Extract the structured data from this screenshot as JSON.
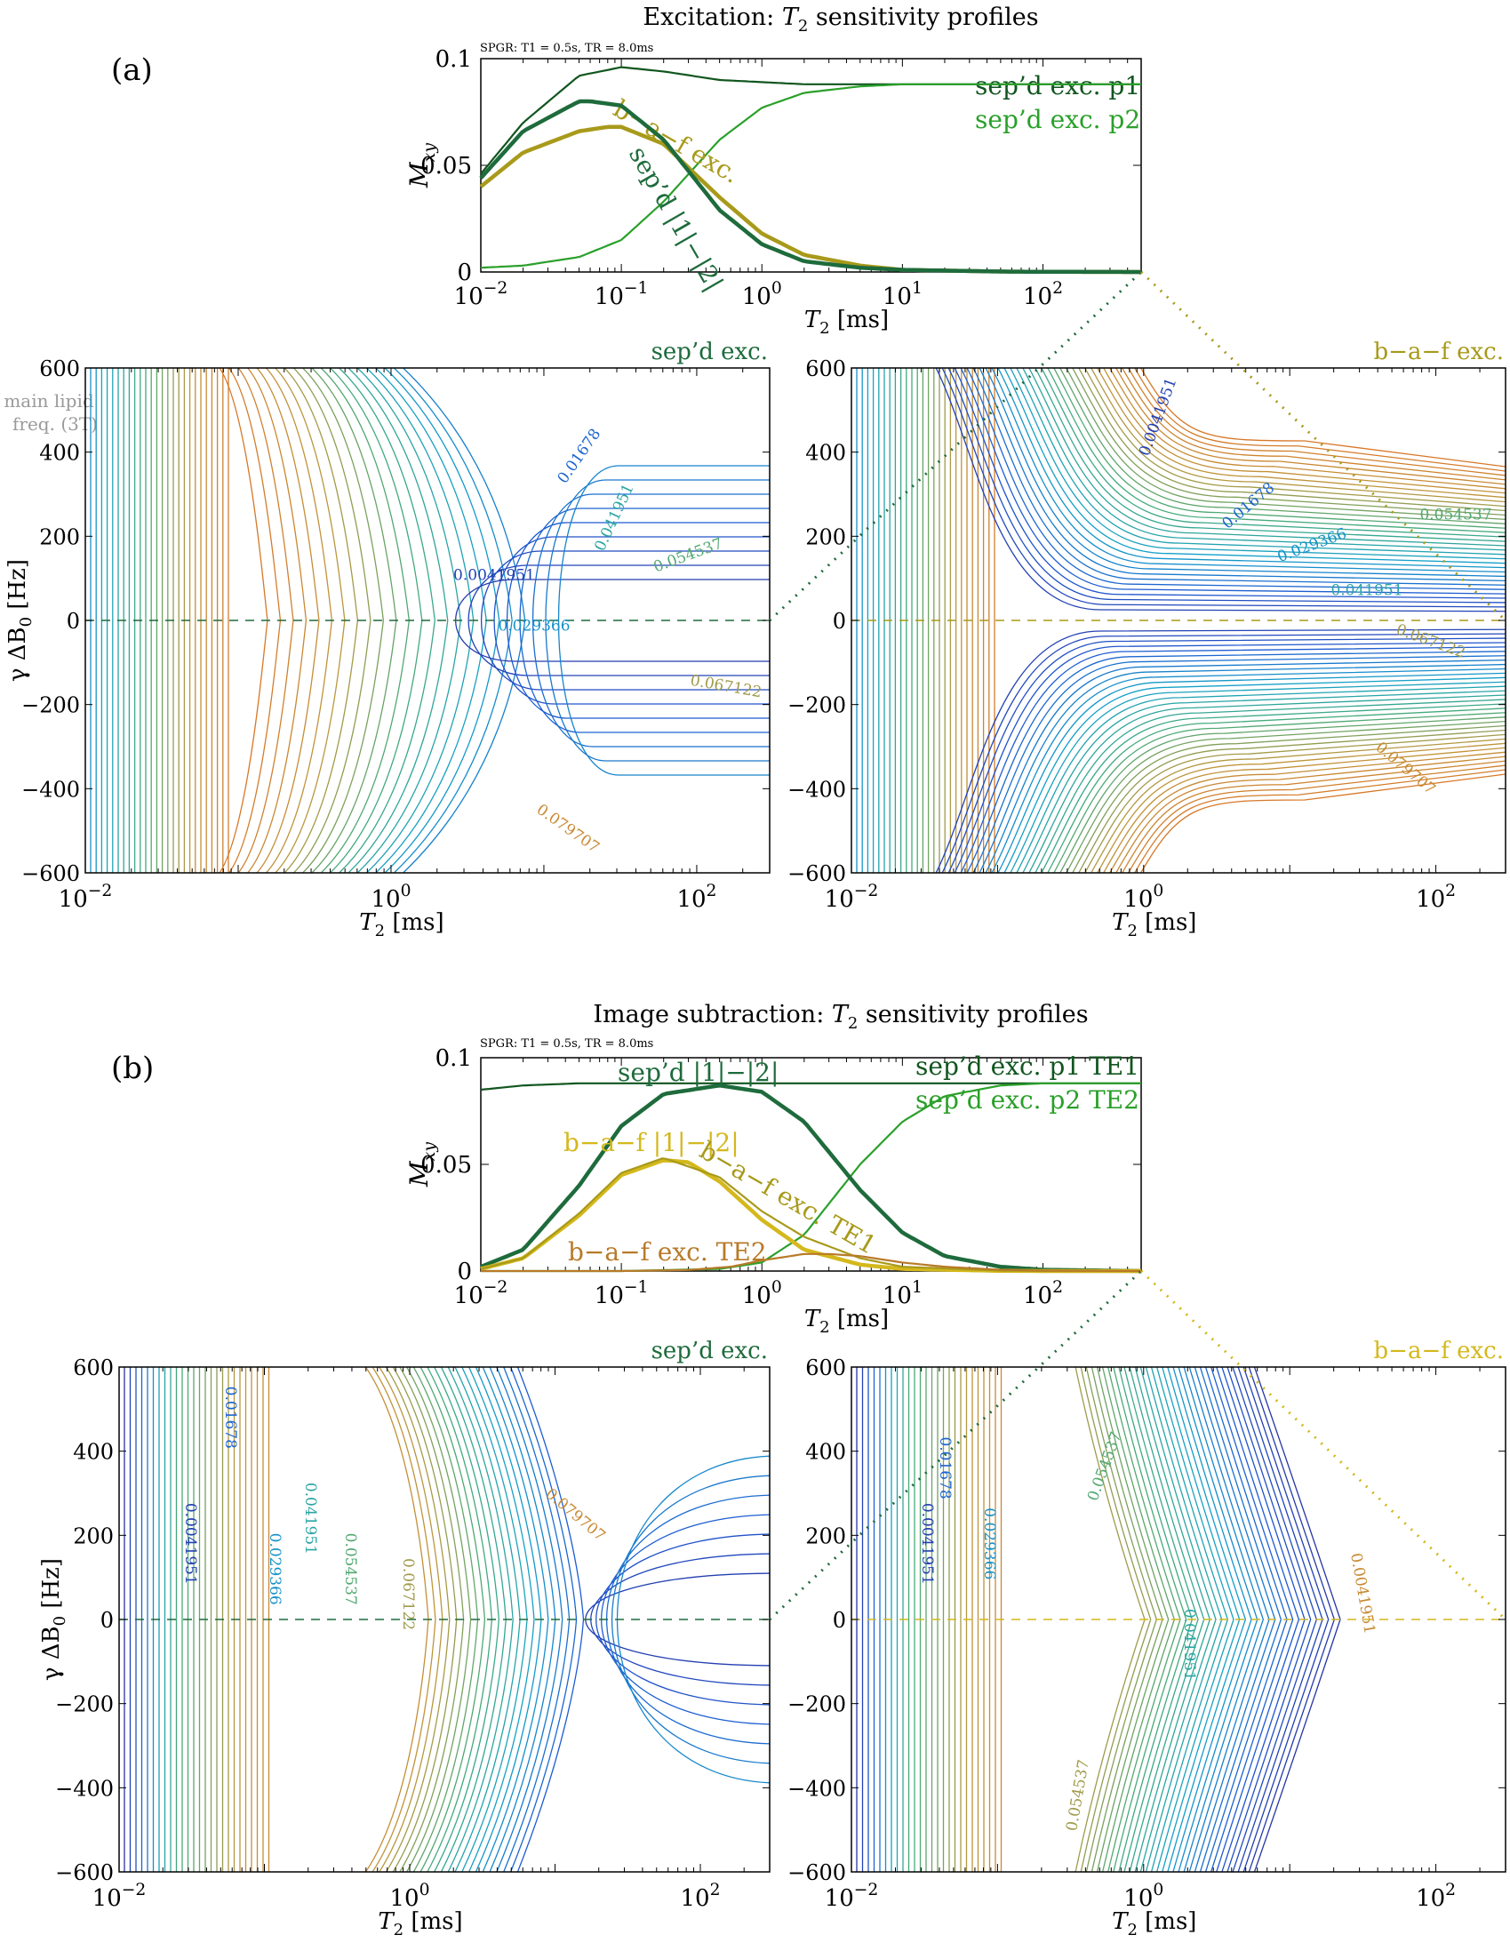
{
  "figure": {
    "panel_a": {
      "label": "(a)",
      "title_prefix": "Excitation: ",
      "title_t": "T",
      "title_sub": "2",
      "title_suffix": " sensitivity profiles"
    },
    "panel_b": {
      "label": "(b)",
      "title_prefix": "Image subtraction: ",
      "title_t": "T",
      "title_sub": "2",
      "title_suffix": " sensitivity profiles"
    },
    "spgr_note": "SPGR: T1 = 0.5s, TR = 8.0ms",
    "lipid_label_line1": "main lipid",
    "lipid_label_line2": "freq. (3T)",
    "colors": {
      "sepd": "#1e6b3c",
      "sepd_p1": "#11561f",
      "sepd_p2": "#2aa02a",
      "baf_a": "#a89a1a",
      "baf_b": "#d4b81c",
      "baf_te2": "#b87a28",
      "baf_title_a": "#a89a1a",
      "baf_title_b": "#d4b81c"
    }
  },
  "chart_data": [
    {
      "id": "a-top",
      "type": "line",
      "xscale": "log",
      "xlim": [
        0.01,
        500
      ],
      "ylim": [
        0,
        0.1
      ],
      "xlabel": "T2 [ms]",
      "ylabel": "Mxy",
      "xticks": [
        "10^-2",
        "10^-1",
        "10^0",
        "10^1",
        "10^2"
      ],
      "yticks": [
        "0",
        "0.05",
        "0.1"
      ],
      "series": [
        {
          "name": "sep'd exc. p1",
          "label": "sep’d exc. p1",
          "x": [
            0.01,
            0.02,
            0.05,
            0.1,
            0.2,
            0.5,
            1,
            2,
            5,
            10,
            50,
            100,
            500
          ],
          "y": [
            0.046,
            0.07,
            0.092,
            0.096,
            0.094,
            0.09,
            0.089,
            0.088,
            0.088,
            0.088,
            0.088,
            0.088,
            0.088
          ]
        },
        {
          "name": "sep'd exc. p2",
          "label": "sep’d exc. p2",
          "x": [
            0.01,
            0.02,
            0.05,
            0.1,
            0.2,
            0.5,
            1,
            2,
            5,
            10,
            50,
            100,
            500
          ],
          "y": [
            0.002,
            0.003,
            0.007,
            0.015,
            0.033,
            0.062,
            0.077,
            0.084,
            0.087,
            0.088,
            0.088,
            0.088,
            0.088
          ]
        },
        {
          "name": "b-a-f exc.",
          "label": "b−a−f exc.",
          "x": [
            0.01,
            0.02,
            0.05,
            0.08,
            0.1,
            0.2,
            0.5,
            1,
            2,
            5,
            10,
            50,
            100,
            500
          ],
          "y": [
            0.04,
            0.056,
            0.066,
            0.068,
            0.068,
            0.06,
            0.035,
            0.018,
            0.008,
            0.003,
            0.001,
            0.0002,
            0.0001,
            0
          ]
        },
        {
          "name": "sep'd |1|-|2|",
          "label": "sep’d |1|−|2|",
          "x": [
            0.01,
            0.02,
            0.05,
            0.06,
            0.1,
            0.2,
            0.5,
            1,
            2,
            5,
            10,
            50,
            100,
            500
          ],
          "y": [
            0.044,
            0.066,
            0.08,
            0.08,
            0.078,
            0.062,
            0.029,
            0.013,
            0.005,
            0.002,
            0.001,
            0.0002,
            0.0001,
            0
          ]
        }
      ]
    },
    {
      "id": "a-sepd",
      "type": "contour",
      "title": "sep’d exc.",
      "xscale": "log",
      "xlim": [
        0.01,
        300
      ],
      "ylim": [
        -600,
        600
      ],
      "xlabel": "T2 [ms]",
      "ylabel": "γ ΔB0 [Hz]",
      "xticks": [
        "10^-2",
        "10^0",
        "10^2"
      ],
      "yticks": [
        "-600",
        "-400",
        "-200",
        "0",
        "200",
        "400",
        "600"
      ],
      "contour_labels": [
        "0.0041951",
        "0.01678",
        "0.029366",
        "0.041951",
        "0.054537",
        "0.067122",
        "0.079707"
      ]
    },
    {
      "id": "a-baf",
      "type": "contour",
      "title": "b−a−f exc.",
      "xscale": "log",
      "xlim": [
        0.01,
        300
      ],
      "ylim": [
        -600,
        600
      ],
      "xlabel": "T2 [ms]",
      "ylabel": "",
      "xticks": [
        "10^-2",
        "10^0",
        "10^2"
      ],
      "yticks": [
        "-600",
        "-400",
        "-200",
        "0",
        "200",
        "400",
        "600"
      ],
      "contour_labels": [
        "0.0041951",
        "0.01678",
        "0.029366",
        "0.041951",
        "0.054537",
        "0.067122",
        "0.079707"
      ]
    },
    {
      "id": "b-top",
      "type": "line",
      "xscale": "log",
      "xlim": [
        0.01,
        500
      ],
      "ylim": [
        0,
        0.1
      ],
      "xlabel": "T2 [ms]",
      "ylabel": "Mxy",
      "xticks": [
        "10^-2",
        "10^-1",
        "10^0",
        "10^1",
        "10^2"
      ],
      "yticks": [
        "0",
        "0.05",
        "0.1"
      ],
      "series": [
        {
          "name": "sep'd exc. p1 TE1",
          "label": "sep’d exc. p1 TE1",
          "x": [
            0.01,
            0.02,
            0.05,
            0.1,
            0.2,
            0.5,
            1,
            10,
            100,
            500
          ],
          "y": [
            0.085,
            0.087,
            0.088,
            0.088,
            0.088,
            0.088,
            0.088,
            0.088,
            0.088,
            0.088
          ]
        },
        {
          "name": "sep'd exc. p2 TE2",
          "label": "sep’d exc. p2 TE2",
          "x": [
            0.01,
            0.1,
            0.5,
            1,
            2,
            5,
            10,
            20,
            50,
            100,
            500
          ],
          "y": [
            0,
            0,
            0.001,
            0.004,
            0.017,
            0.05,
            0.07,
            0.082,
            0.087,
            0.088,
            0.088
          ]
        },
        {
          "name": "sep'd |1|-|2|",
          "label": "sep’d |1|−|2|",
          "x": [
            0.01,
            0.02,
            0.05,
            0.1,
            0.2,
            0.5,
            1,
            2,
            5,
            10,
            20,
            50,
            100,
            500
          ],
          "y": [
            0.002,
            0.01,
            0.04,
            0.068,
            0.083,
            0.087,
            0.084,
            0.07,
            0.038,
            0.018,
            0.007,
            0.002,
            0.0006,
            0
          ]
        },
        {
          "name": "b-a-f |1|-|2|",
          "label": "b−a−f |1|−|2|",
          "x": [
            0.01,
            0.02,
            0.05,
            0.1,
            0.2,
            0.3,
            0.5,
            1,
            2,
            5,
            10,
            50,
            100,
            500
          ],
          "y": [
            0.001,
            0.006,
            0.026,
            0.045,
            0.052,
            0.051,
            0.042,
            0.024,
            0.01,
            0.003,
            0.001,
            0.0001,
            0,
            0
          ]
        },
        {
          "name": "b-a-f exc. TE1",
          "label": "b−a−f exc. TE1",
          "x": [
            0.01,
            0.02,
            0.05,
            0.1,
            0.2,
            0.5,
            1,
            2,
            5,
            10,
            50,
            100,
            500
          ],
          "y": [
            0.001,
            0.006,
            0.027,
            0.046,
            0.053,
            0.044,
            0.028,
            0.016,
            0.006,
            0.002,
            0.0002,
            0,
            0
          ]
        },
        {
          "name": "b-a-f exc. TE2",
          "label": "b−a−f exc. TE2",
          "x": [
            0.01,
            0.1,
            0.3,
            0.6,
            1,
            2,
            3,
            5,
            10,
            20,
            50,
            100,
            500
          ],
          "y": [
            0,
            0,
            0.0005,
            0.002,
            0.005,
            0.008,
            0.008,
            0.007,
            0.004,
            0.002,
            0.0006,
            0.0002,
            0
          ]
        }
      ]
    },
    {
      "id": "b-sepd",
      "type": "contour",
      "title": "sep’d exc.",
      "xscale": "log",
      "xlim": [
        0.01,
        300
      ],
      "ylim": [
        -600,
        600
      ],
      "xlabel": "T2 [ms]",
      "ylabel": "γ ΔB0 [Hz]",
      "xticks": [
        "10^-2",
        "10^0",
        "10^2"
      ],
      "yticks": [
        "-600",
        "-400",
        "-200",
        "0",
        "200",
        "400",
        "600"
      ],
      "contour_labels": [
        "0.0041951",
        "0.01678",
        "0.029366",
        "0.041951",
        "0.054537",
        "0.067122",
        "0.079707"
      ]
    },
    {
      "id": "b-baf",
      "type": "contour",
      "title": "b−a−f exc.",
      "xscale": "log",
      "xlim": [
        0.01,
        300
      ],
      "ylim": [
        -600,
        600
      ],
      "xlabel": "T2 [ms]",
      "ylabel": "",
      "xticks": [
        "10^-2",
        "10^0",
        "10^2"
      ],
      "yticks": [
        "-600",
        "-400",
        "-200",
        "0",
        "200",
        "400",
        "600"
      ],
      "contour_labels": [
        "0.0041951",
        "0.01678",
        "0.029366",
        "0.041951",
        "0.054537",
        "0.054537",
        "0.0041951"
      ]
    }
  ]
}
